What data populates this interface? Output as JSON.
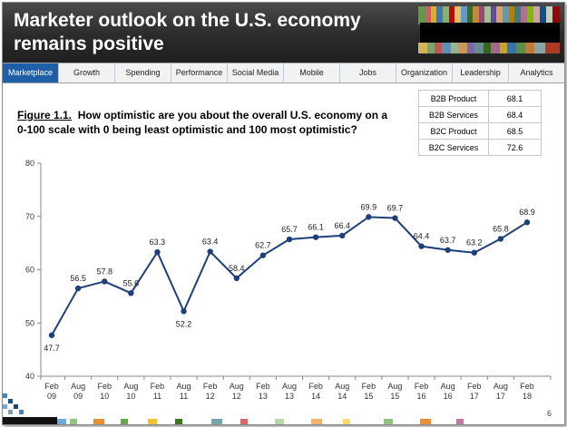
{
  "header": {
    "title": "Marketer outlook on the U.S. economy remains positive"
  },
  "nav": {
    "tabs": [
      {
        "label": "Marketplace",
        "active": true
      },
      {
        "label": "Growth",
        "active": false
      },
      {
        "label": "Spending",
        "active": false
      },
      {
        "label": "Performance",
        "active": false
      },
      {
        "label": "Social Media",
        "active": false
      },
      {
        "label": "Mobile",
        "active": false
      },
      {
        "label": "Jobs",
        "active": false
      },
      {
        "label": "Organization",
        "active": false
      },
      {
        "label": "Leadership",
        "active": false
      },
      {
        "label": "Analytics",
        "active": false
      }
    ]
  },
  "figure": {
    "label": "Figure 1.1.",
    "question": "How optimistic are you about the overall U.S. economy on a 0-100 scale with 0 being least optimistic and 100 most optimistic?"
  },
  "benchmarks": [
    {
      "name": "B2B Product",
      "value": "68.1"
    },
    {
      "name": "B2B Services",
      "value": "68.4"
    },
    {
      "name": "B2C Product",
      "value": "68.5"
    },
    {
      "name": "B2C Services",
      "value": "72.6"
    }
  ],
  "page_number": "6",
  "colors": {
    "accent": "#1f5fa8",
    "line": "#1f3f78",
    "header_bg": "#2b2b2b"
  },
  "chart_data": {
    "type": "line",
    "title": "",
    "xlabel": "",
    "ylabel": "",
    "ylim": [
      40,
      80
    ],
    "yticks": [
      "40",
      "50",
      "60",
      "70",
      "80"
    ],
    "grid": false,
    "categories": [
      [
        "Feb",
        "09"
      ],
      [
        "Aug",
        "09"
      ],
      [
        "Feb",
        "10"
      ],
      [
        "Aug",
        "10"
      ],
      [
        "Feb",
        "11"
      ],
      [
        "Aug",
        "11"
      ],
      [
        "Feb",
        "12"
      ],
      [
        "Aug",
        "12"
      ],
      [
        "Feb",
        "13"
      ],
      [
        "Aug",
        "13"
      ],
      [
        "Feb",
        "14"
      ],
      [
        "Aug",
        "14"
      ],
      [
        "Feb",
        "15"
      ],
      [
        "Aug",
        "15"
      ],
      [
        "Feb",
        "16"
      ],
      [
        "Aug",
        "16"
      ],
      [
        "Feb",
        "17"
      ],
      [
        "Aug",
        "17"
      ],
      [
        "Feb",
        "18"
      ]
    ],
    "series": [
      {
        "values": [
          47.7,
          56.5,
          57.8,
          55.6,
          63.3,
          52.2,
          63.4,
          58.4,
          62.7,
          65.7,
          66.1,
          66.4,
          69.9,
          69.7,
          64.4,
          63.7,
          63.2,
          65.8,
          68.9
        ],
        "labels": [
          "47.7",
          "56.5",
          "57.8",
          "55.6",
          "63.3",
          "52.2",
          "63.4",
          "58.4",
          "62.7",
          "65.7",
          "66.1",
          "66.4",
          "69.9",
          "69.7",
          "64.4",
          "63.7",
          "63.2",
          "65.8",
          "68.9"
        ],
        "label_below": [
          true,
          false,
          false,
          false,
          false,
          true,
          false,
          false,
          false,
          false,
          false,
          false,
          false,
          false,
          false,
          false,
          false,
          false,
          false
        ]
      }
    ]
  }
}
